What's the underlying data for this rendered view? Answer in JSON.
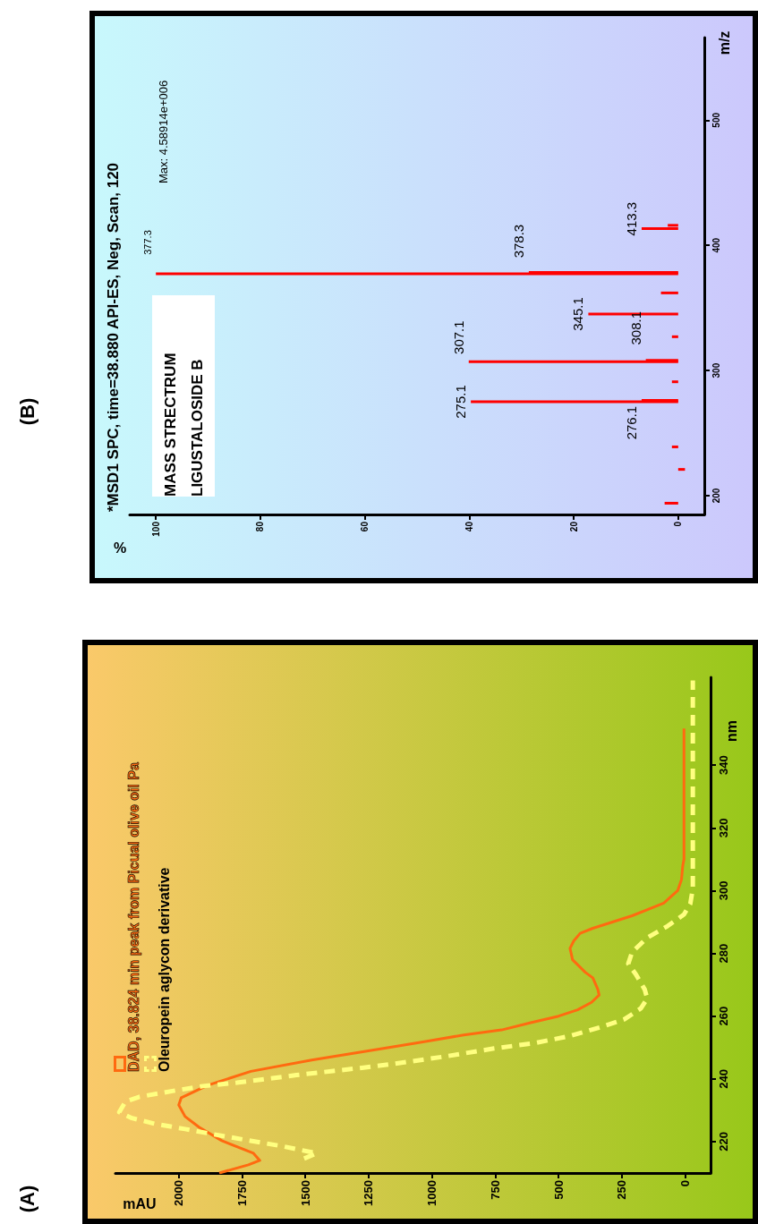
{
  "chart_data": [
    {
      "type": "line",
      "annotations": [
        "(A)"
      ],
      "xlabel": "mAU",
      "ylabel": "nm",
      "xlim": [
        2250,
        -100
      ],
      "xticks": [
        0,
        250,
        500,
        750,
        1000,
        1250,
        1500,
        1750,
        2000
      ],
      "ylim": [
        210,
        368
      ],
      "yticks": [
        220,
        240,
        260,
        280,
        300,
        320,
        340
      ],
      "legend": "top left",
      "grid": false,
      "series": [
        {
          "name": "DAD, 38.824 min peak from Picual olive oil Pa",
          "color": "#ff6a10",
          "line_style": "solid",
          "x": [
            1840,
            1725,
            1680,
            1705,
            1830,
            1920,
            1975,
            2000,
            1990,
            1885,
            1715,
            1475,
            1170,
            1020,
            875,
            725,
            610,
            500,
            425,
            370,
            340,
            345,
            365,
            395,
            445,
            455,
            440,
            415,
            365,
            210,
            85,
            30,
            15,
            10,
            5,
            5
          ],
          "values": [
            210,
            212.6,
            214,
            216.3,
            220.3,
            224.6,
            228,
            231.7,
            234,
            238,
            242.4,
            246,
            250,
            252,
            254,
            255.6,
            257.9,
            260,
            262,
            264.4,
            266.7,
            268.5,
            272.2,
            274,
            278,
            281.6,
            284,
            286.4,
            288,
            292,
            296,
            300,
            303.5,
            307.8,
            310,
            351.7
          ]
        },
        {
          "name": "Oleuropein aglycon derivative",
          "color": "#ffff80",
          "line_style": "dashed",
          "x": [
            1505,
            1455,
            1595,
            1725,
            1860,
            1975,
            2095,
            2185,
            2235,
            2210,
            2155,
            2020,
            1905,
            1770,
            1535,
            1270,
            1150,
            960,
            755,
            595,
            460,
            330,
            240,
            175,
            150,
            160,
            195,
            225,
            210,
            150,
            70,
            5,
            -20,
            -30,
            -30,
            -30,
            -30,
            -30
          ],
          "values": [
            214.6,
            216.3,
            218.6,
            220.4,
            222.3,
            224,
            225.7,
            227.5,
            229.4,
            232.8,
            234.3,
            236.2,
            237.7,
            238.8,
            241.2,
            243.6,
            244.8,
            247,
            249.7,
            251.4,
            253.6,
            256.6,
            259,
            262.5,
            265.6,
            268.5,
            273.3,
            276.7,
            280.4,
            285,
            288.7,
            292.4,
            295.8,
            300.7,
            312.4,
            345.7,
            357.7,
            367
          ]
        }
      ]
    },
    {
      "type": "bar",
      "orientation": "horizontal",
      "title": "*MSD1 SPC, time=38.880 API-ES, Neg, Scan, 120",
      "xlabel": "%",
      "ylabel": "m/z",
      "xlim": [
        105,
        -5
      ],
      "xticks": [
        0,
        20,
        40,
        60,
        80,
        100
      ],
      "ylim": [
        185,
        566
      ],
      "yticks": [
        200,
        300,
        400,
        500
      ],
      "legend": false,
      "grid": false,
      "color": "#ff0000",
      "x": [
        194,
        221,
        239,
        275.1,
        276.1,
        291,
        307.1,
        308.1,
        327,
        345.1,
        362,
        377.3,
        378.3,
        413.3,
        416
      ],
      "values": [
        2.6,
        -1.3,
        1.2,
        39.7,
        7,
        1.2,
        40.1,
        6.2,
        1.2,
        17.2,
        3.3,
        100,
        28.6,
        7,
        2
      ],
      "annotations": [
        "(B)",
        "Max: 4.58914e+006",
        "MASS STRECTRUM",
        "LIGUSTALOSIDE B",
        {
          "text": "275.1",
          "x": 39.7,
          "y": 275.1
        },
        {
          "text": "307.1",
          "x": 40.1,
          "y": 307.1
        },
        {
          "text": "276.1",
          "x": 7,
          "y": 276.1
        },
        {
          "text": "308.1",
          "x": 6.2,
          "y": 308.1
        },
        {
          "text": "345.1",
          "x": 17.2,
          "y": 345.1
        },
        {
          "text": "377.3",
          "x": 100,
          "y": 377.3
        },
        {
          "text": "378.3",
          "x": 28.6,
          "y": 378.3
        },
        {
          "text": "413.3",
          "x": 7,
          "y": 413.3
        }
      ]
    }
  ]
}
